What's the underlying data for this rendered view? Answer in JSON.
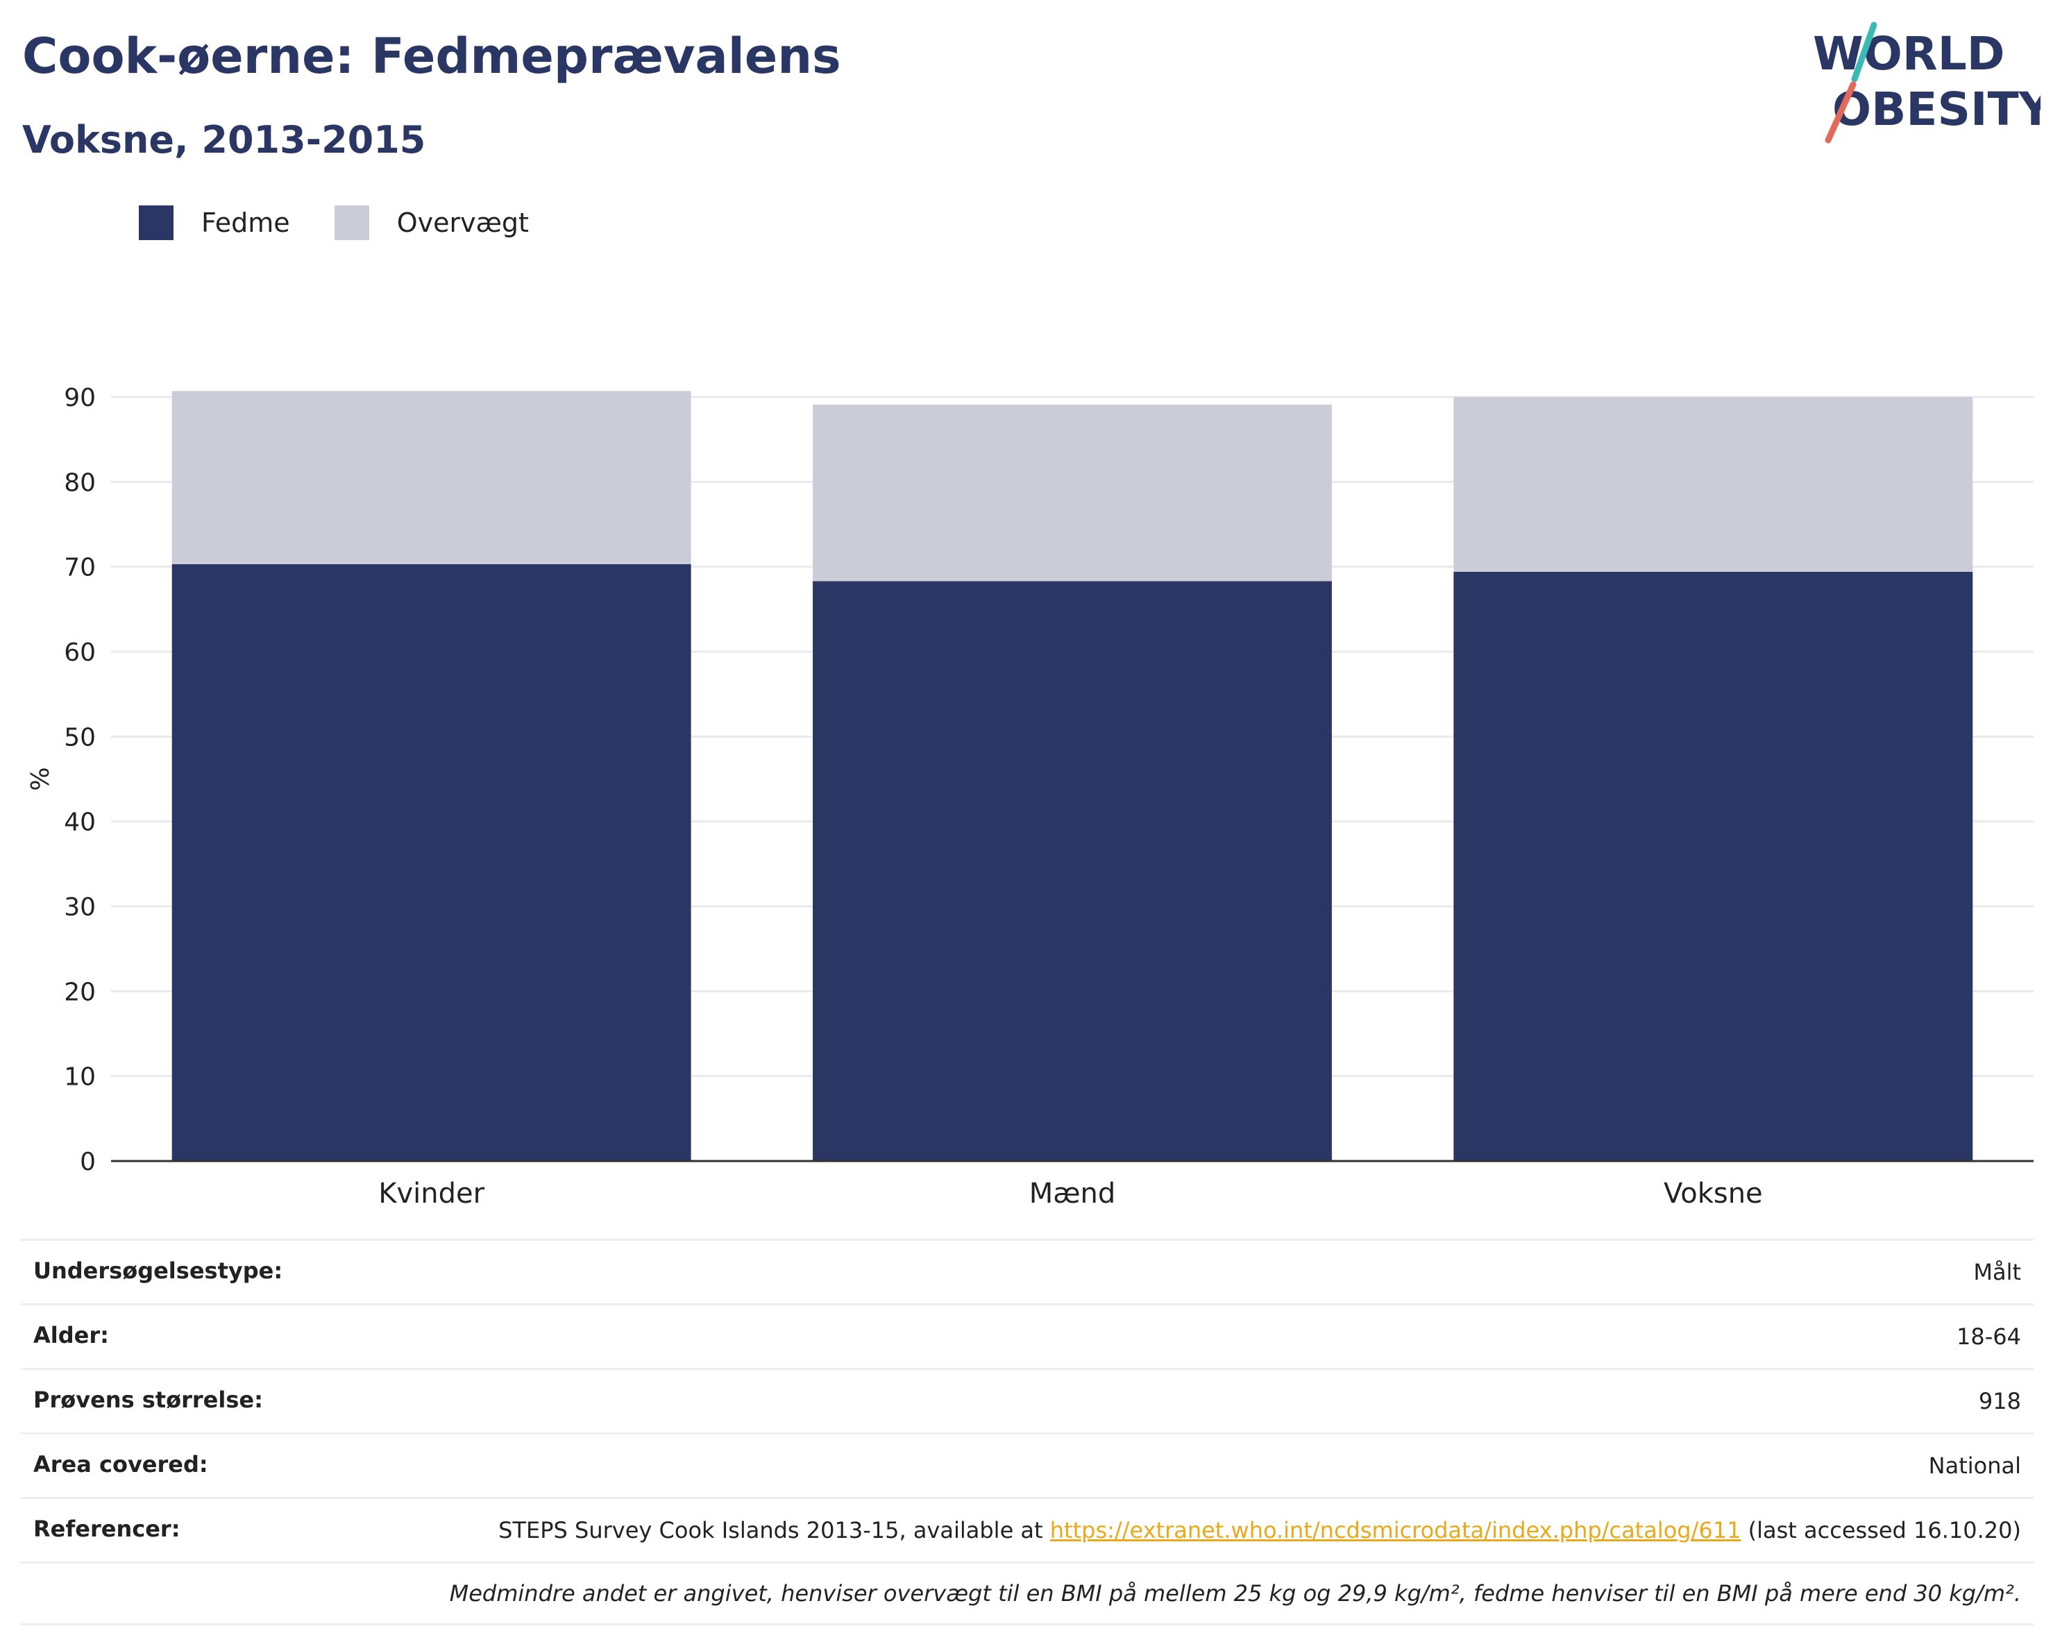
{
  "header": {
    "title": "Cook-øerne: Fedmeprævalens",
    "subtitle": "Voksne, 2013-2015"
  },
  "logo": {
    "line1": "WORLD",
    "line2": "OBESITY"
  },
  "legend": [
    {
      "label": "Fedme",
      "color": "#2a3663"
    },
    {
      "label": "Overvægt",
      "color": "#cbccd7"
    }
  ],
  "chart_data": {
    "type": "bar",
    "stacked": true,
    "categories": [
      "Kvinder",
      "Mænd",
      "Voksne"
    ],
    "series": [
      {
        "name": "Fedme",
        "color": "#2a3663",
        "values": [
          70.3,
          68.3,
          69.4
        ]
      },
      {
        "name": "Overvægt",
        "color": "#cbccd7",
        "values": [
          20.4,
          20.8,
          20.6
        ]
      }
    ],
    "ylabel": "%",
    "ylim": [
      0,
      90
    ],
    "yticks": [
      0,
      10,
      20,
      30,
      40,
      50,
      60,
      70,
      80,
      90
    ],
    "grid": true,
    "legend_position": "top-left"
  },
  "info": {
    "survey_type_label": "Undersøgelsestype:",
    "survey_type_value": "Målt",
    "age_label": "Alder:",
    "age_value": "18-64",
    "sample_label": "Prøvens størrelse:",
    "sample_value": "918",
    "area_label": "Area covered:",
    "area_value": "National",
    "references_label": "Referencer:",
    "references_text": "STEPS Survey Cook Islands 2013-15, available at",
    "references_link": "https://extranet.who.int/ncdsmicrodata/index.php/catalog/611",
    "references_suffix": "(last accessed 16.10.20)",
    "note": "Medmindre andet er angivet, henviser overvægt til en BMI på mellem 25 kg og 29,9 kg/m², fedme henviser til en BMI på mere end 30 kg/m²."
  }
}
